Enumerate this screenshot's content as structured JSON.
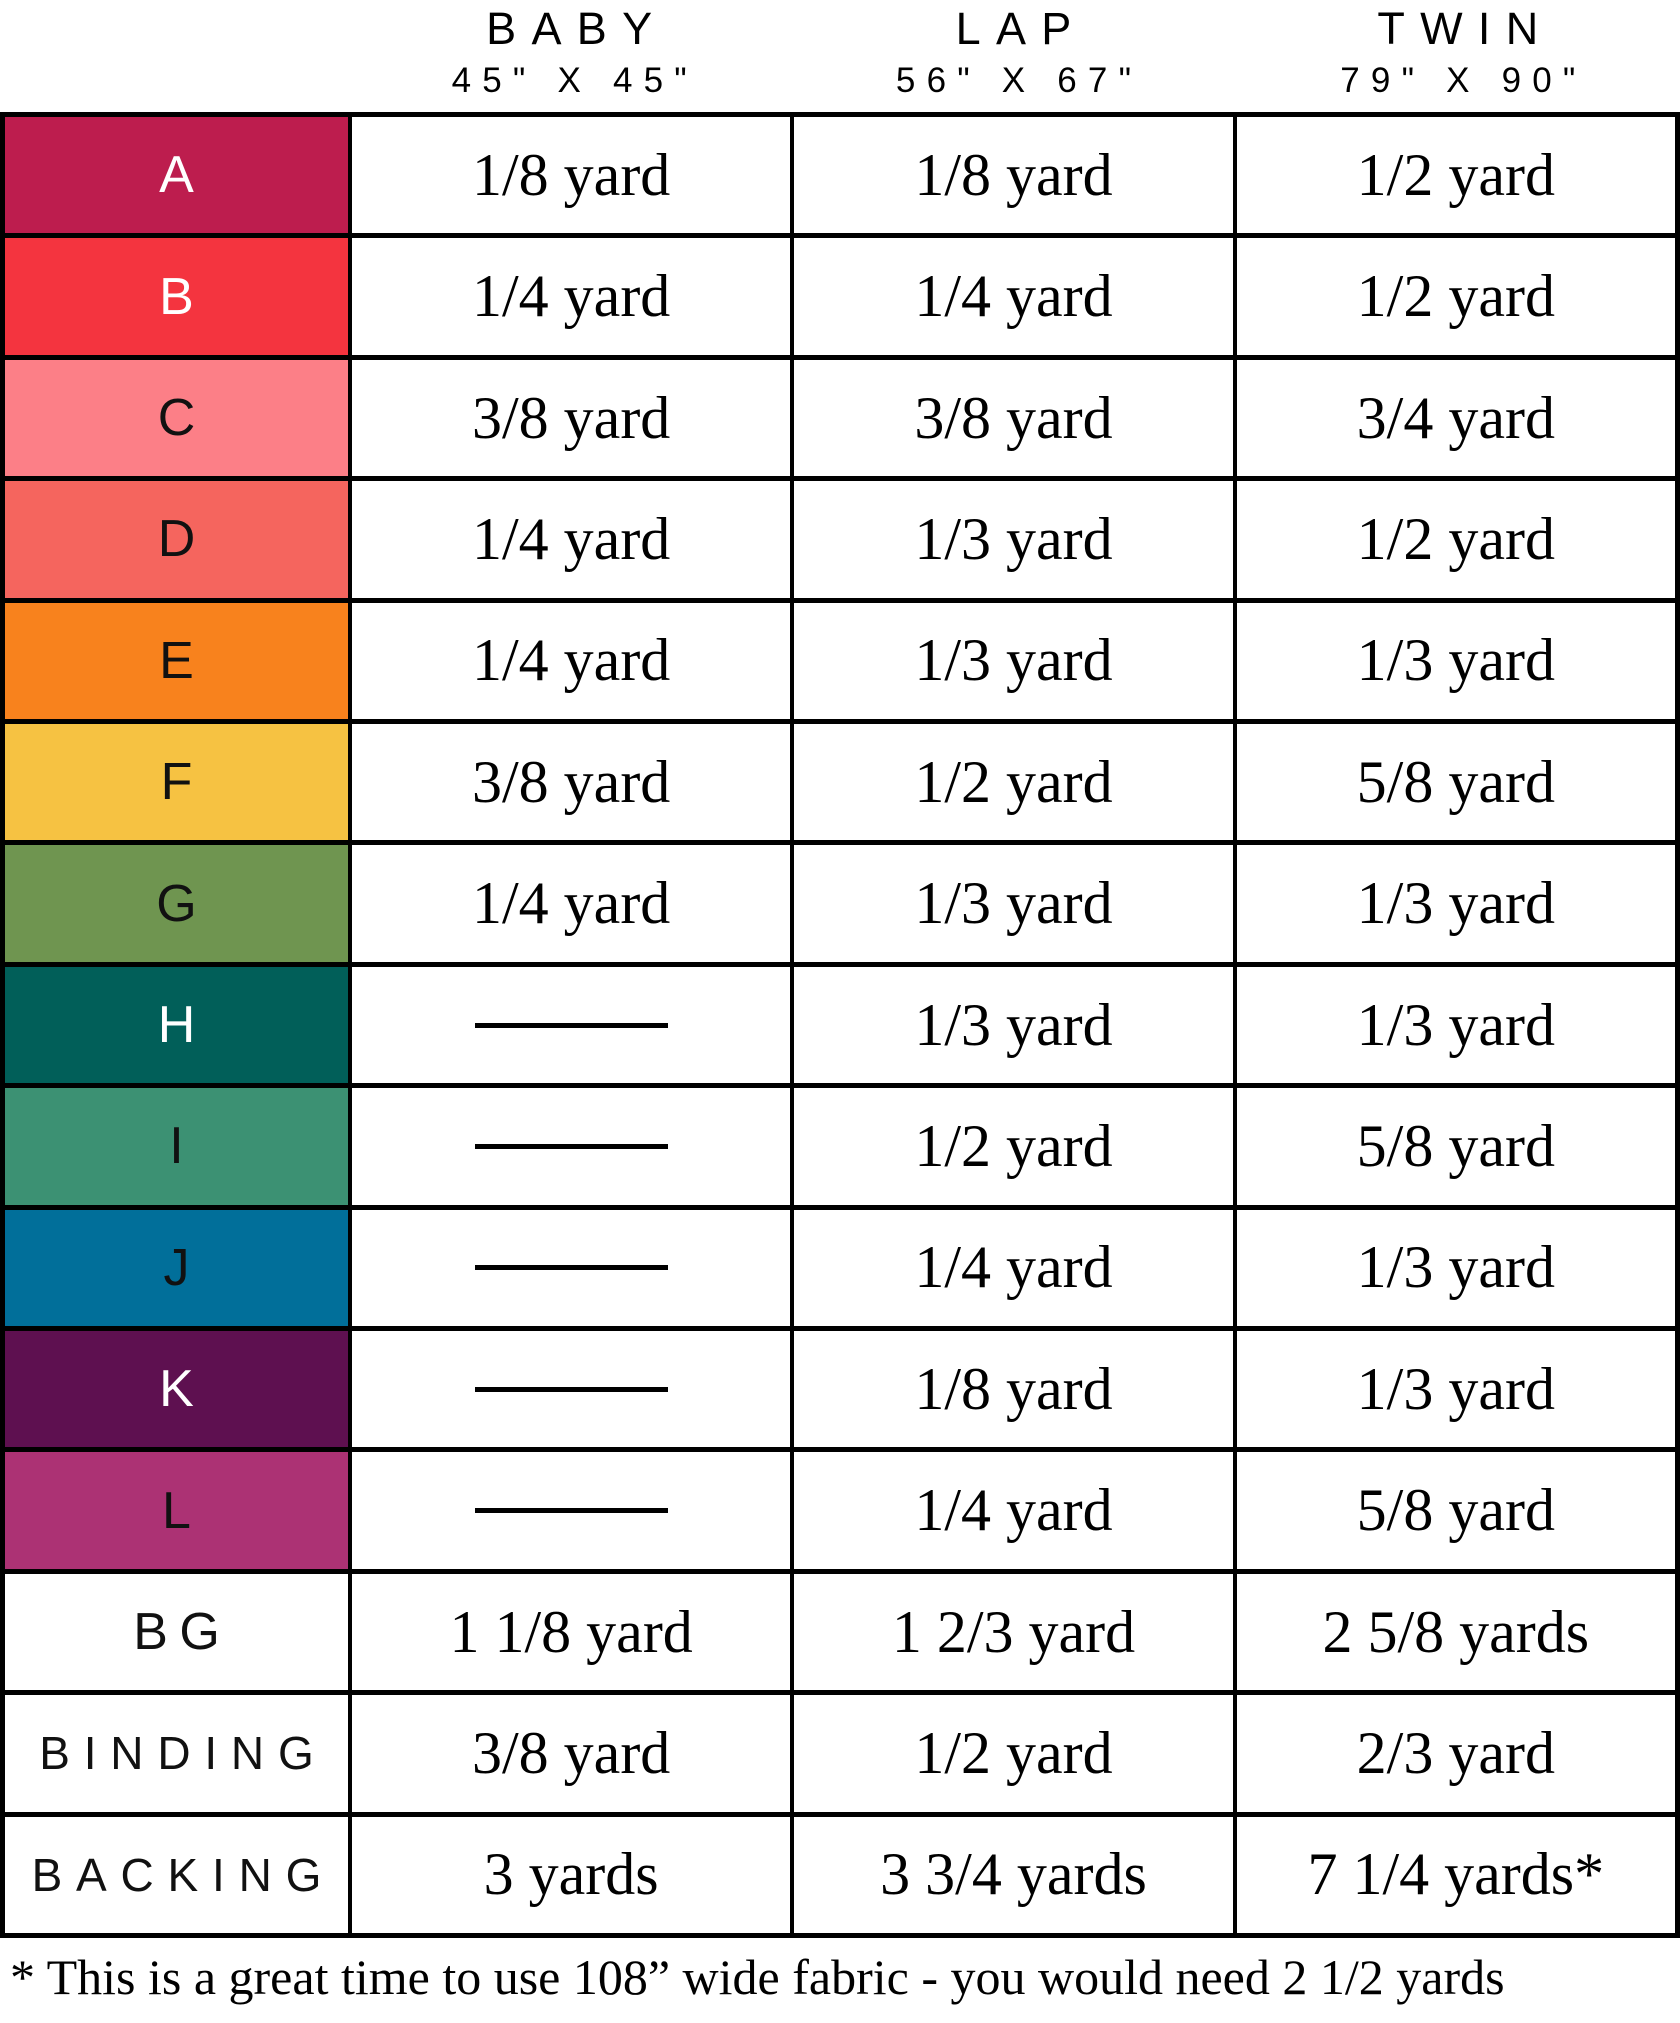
{
  "size_columns": [
    {
      "label": "BABY",
      "dimensions": "45\" X 45\""
    },
    {
      "label": "LAP",
      "dimensions": "56\" X 67\""
    },
    {
      "label": "TWIN",
      "dimensions": "79\" X 90\""
    }
  ],
  "dash_symbol": "—",
  "fabric_rows": [
    {
      "label": "A",
      "swatch_color": "#BD1D4E",
      "label_color": "#FFFFFF",
      "baby": "1/8 yard",
      "lap": "1/8 yard",
      "twin": "1/2 yard"
    },
    {
      "label": "B",
      "swatch_color": "#F4343F",
      "label_color": "#FFFFFF",
      "baby": "1/4 yard",
      "lap": "1/4 yard",
      "twin": "1/2 yard"
    },
    {
      "label": "C",
      "swatch_color": "#FC7F87",
      "label_color": "#111111",
      "baby": "3/8 yard",
      "lap": "3/8 yard",
      "twin": "3/4 yard"
    },
    {
      "label": "D",
      "swatch_color": "#F5655E",
      "label_color": "#111111",
      "baby": "1/4 yard",
      "lap": "1/3 yard",
      "twin": "1/2 yard"
    },
    {
      "label": "E",
      "swatch_color": "#F8821D",
      "label_color": "#111111",
      "baby": "1/4 yard",
      "lap": "1/3 yard",
      "twin": "1/3 yard"
    },
    {
      "label": "F",
      "swatch_color": "#F6C242",
      "label_color": "#111111",
      "baby": "3/8 yard",
      "lap": "1/2 yard",
      "twin": "5/8 yard"
    },
    {
      "label": "G",
      "swatch_color": "#6F9550",
      "label_color": "#111111",
      "baby": "1/4 yard",
      "lap": "1/3 yard",
      "twin": "1/3 yard"
    },
    {
      "label": "H",
      "swatch_color": "#015F59",
      "label_color": "#FFFFFF",
      "baby": "—",
      "lap": "1/3 yard",
      "twin": "1/3 yard"
    },
    {
      "label": "I",
      "swatch_color": "#3C9173",
      "label_color": "#111111",
      "baby": "—",
      "lap": "1/2 yard",
      "twin": "5/8 yard"
    },
    {
      "label": "J",
      "swatch_color": "#016F9A",
      "label_color": "#111111",
      "baby": "—",
      "lap": "1/4 yard",
      "twin": "1/3 yard"
    },
    {
      "label": "K",
      "swatch_color": "#5E1050",
      "label_color": "#FFFFFF",
      "baby": "—",
      "lap": "1/8 yard",
      "twin": "1/3 yard"
    },
    {
      "label": "L",
      "swatch_color": "#AC3274",
      "label_color": "#111111",
      "baby": "—",
      "lap": "1/4 yard",
      "twin": "5/8 yard"
    },
    {
      "label": "BG",
      "swatch_color": "#FFFFFF",
      "label_color": "#111111",
      "baby": "1 1/8 yard",
      "lap": "1 2/3 yard",
      "twin": "2 5/8 yards"
    },
    {
      "label": "BINDING",
      "swatch_color": "#FFFFFF",
      "label_color": "#111111",
      "baby": "3/8 yard",
      "lap": "1/2 yard",
      "twin": "2/3 yard"
    },
    {
      "label": "BACKING",
      "swatch_color": "#FFFFFF",
      "label_color": "#111111",
      "baby": "3 yards",
      "lap": "3 3/4 yards",
      "twin": "7 1/4 yards*"
    }
  ],
  "footnote": "* This is a great time to use 108” wide fabric - you would need 2 1/2 yards"
}
